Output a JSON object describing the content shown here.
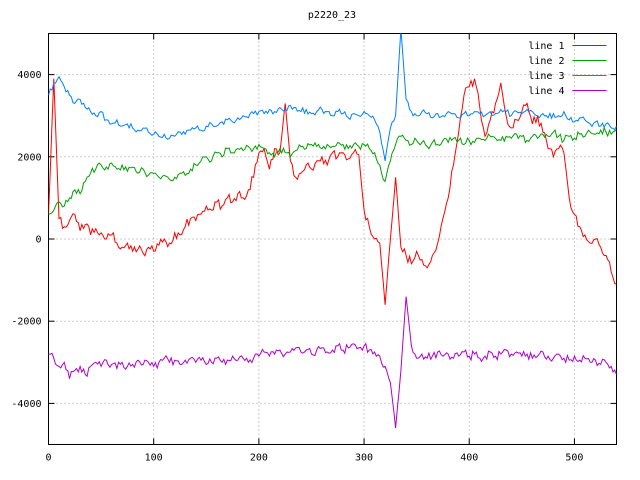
{
  "title": "p2220_23",
  "chart_data": {
    "type": "line",
    "title": "p2220_23",
    "xlabel": "",
    "ylabel": "",
    "xlim": [
      0,
      540
    ],
    "ylim": [
      -5000,
      5000
    ],
    "x_ticks": [
      0,
      100,
      200,
      300,
      400,
      500
    ],
    "y_ticks": [
      -4000,
      -2000,
      0,
      2000,
      4000
    ],
    "grid": true,
    "legend_position": "top-right",
    "background": "#ffffff",
    "x_start": 0,
    "x_step": 5,
    "series": [
      {
        "name": "line 1",
        "color": "#ff0000",
        "noise": 120,
        "values": [
          600,
          3900,
          500,
          300,
          450,
          600,
          200,
          350,
          100,
          250,
          150,
          0,
          100,
          -100,
          -200,
          -100,
          -300,
          -250,
          -350,
          -200,
          -300,
          -150,
          0,
          -100,
          150,
          100,
          300,
          500,
          450,
          600,
          800,
          700,
          900,
          800,
          1000,
          900,
          1100,
          1000,
          1200,
          1500,
          2100,
          2200,
          1700,
          2200,
          2100,
          3300,
          1900,
          1500,
          1600,
          1800,
          1700,
          1900,
          2000,
          1800,
          2100,
          2000,
          2100,
          1950,
          2100,
          2050,
          700,
          300,
          0,
          -100,
          -1600,
          0,
          1500,
          -200,
          -400,
          -600,
          -300,
          -500,
          -700,
          -400,
          -100,
          500,
          1000,
          1800,
          2600,
          3500,
          3700,
          3900,
          3200,
          2500,
          2900,
          3300,
          3800,
          3000,
          2700,
          2900,
          3100,
          3300,
          2800,
          3000,
          2600,
          2200,
          2000,
          2200,
          2100,
          1000,
          600,
          300,
          100,
          -100,
          0,
          -200,
          -400,
          -800,
          -1100
        ]
      },
      {
        "name": "line 2",
        "color": "#00a000",
        "noise": 90,
        "values": [
          600,
          700,
          900,
          800,
          1000,
          1200,
          1100,
          1400,
          1600,
          1700,
          1800,
          1750,
          1850,
          1700,
          1800,
          1650,
          1750,
          1600,
          1700,
          1550,
          1600,
          1500,
          1550,
          1450,
          1500,
          1600,
          1550,
          1700,
          1800,
          1900,
          2000,
          1900,
          2100,
          2000,
          2200,
          2100,
          2200,
          2150,
          2250,
          2200,
          2300,
          2200,
          2100,
          2000,
          2200,
          2100,
          2000,
          2150,
          2250,
          2200,
          2300,
          2250,
          2200,
          2300,
          2250,
          2350,
          2300,
          2200,
          2300,
          2250,
          2300,
          2200,
          2100,
          1800,
          1400,
          1900,
          2300,
          2500,
          2400,
          2300,
          2400,
          2350,
          2250,
          2350,
          2300,
          2400,
          2350,
          2450,
          2400,
          2300,
          2400,
          2350,
          2450,
          2400,
          2500,
          2450,
          2400,
          2500,
          2450,
          2550,
          2500,
          2400,
          2500,
          2450,
          2550,
          2500,
          2600,
          2500,
          2400,
          2500,
          2450,
          2550,
          2500,
          2600,
          2550,
          2650,
          2600,
          2550,
          2650
        ]
      },
      {
        "name": "line 3",
        "color": "#0080ff",
        "noise": 80,
        "values": [
          3500,
          3800,
          3950,
          3700,
          3500,
          3300,
          3400,
          3200,
          3100,
          3000,
          3100,
          2900,
          2800,
          2900,
          2750,
          2800,
          2700,
          2650,
          2700,
          2600,
          2550,
          2500,
          2550,
          2450,
          2500,
          2600,
          2550,
          2650,
          2700,
          2650,
          2750,
          2800,
          2750,
          2850,
          2900,
          2850,
          2950,
          3000,
          2950,
          3050,
          3100,
          3050,
          3150,
          3100,
          3200,
          3150,
          3250,
          3200,
          3100,
          3150,
          3050,
          3100,
          3150,
          3100,
          3000,
          3100,
          3050,
          2950,
          3050,
          3000,
          3100,
          3000,
          2900,
          2600,
          1900,
          2700,
          3000,
          5100,
          3400,
          3100,
          3000,
          3100,
          3050,
          2950,
          3050,
          3000,
          3100,
          3050,
          2950,
          3050,
          3000,
          3100,
          3050,
          3000,
          3100,
          3050,
          3150,
          3100,
          3000,
          3100,
          3050,
          3150,
          3100,
          3000,
          3050,
          2950,
          3050,
          3000,
          3100,
          2900,
          2850,
          2950,
          2900,
          2800,
          2850,
          2750,
          2800,
          2700,
          2750
        ]
      },
      {
        "name": "line 4",
        "color": "#b000d0",
        "noise": 110,
        "values": [
          -2800,
          -2900,
          -3100,
          -3000,
          -3400,
          -3200,
          -3100,
          -3300,
          -3100,
          -3000,
          -3100,
          -2950,
          -3050,
          -3150,
          -3000,
          -3100,
          -3050,
          -2950,
          -3050,
          -3000,
          -3100,
          -3000,
          -2900,
          -3000,
          -2950,
          -3050,
          -2950,
          -2900,
          -3000,
          -2950,
          -3050,
          -3000,
          -2900,
          -3000,
          -2950,
          -2850,
          -2950,
          -2900,
          -3000,
          -2900,
          -2850,
          -2750,
          -2850,
          -2800,
          -2700,
          -2800,
          -2750,
          -2650,
          -2750,
          -2700,
          -2800,
          -2700,
          -2650,
          -2750,
          -2700,
          -2600,
          -2700,
          -2650,
          -2550,
          -2650,
          -2600,
          -2700,
          -2750,
          -2850,
          -3100,
          -3500,
          -4600,
          -3200,
          -1400,
          -2600,
          -2900,
          -2800,
          -2900,
          -2850,
          -2750,
          -2850,
          -2800,
          -2900,
          -2850,
          -2750,
          -2850,
          -2800,
          -2900,
          -2850,
          -2750,
          -2850,
          -2800,
          -2700,
          -2800,
          -2750,
          -2850,
          -2800,
          -2900,
          -2850,
          -2750,
          -2850,
          -2900,
          -2800,
          -2900,
          -2950,
          -2850,
          -2950,
          -2900,
          -3000,
          -2950,
          -3050,
          -3000,
          -3100,
          -3300
        ]
      }
    ]
  }
}
